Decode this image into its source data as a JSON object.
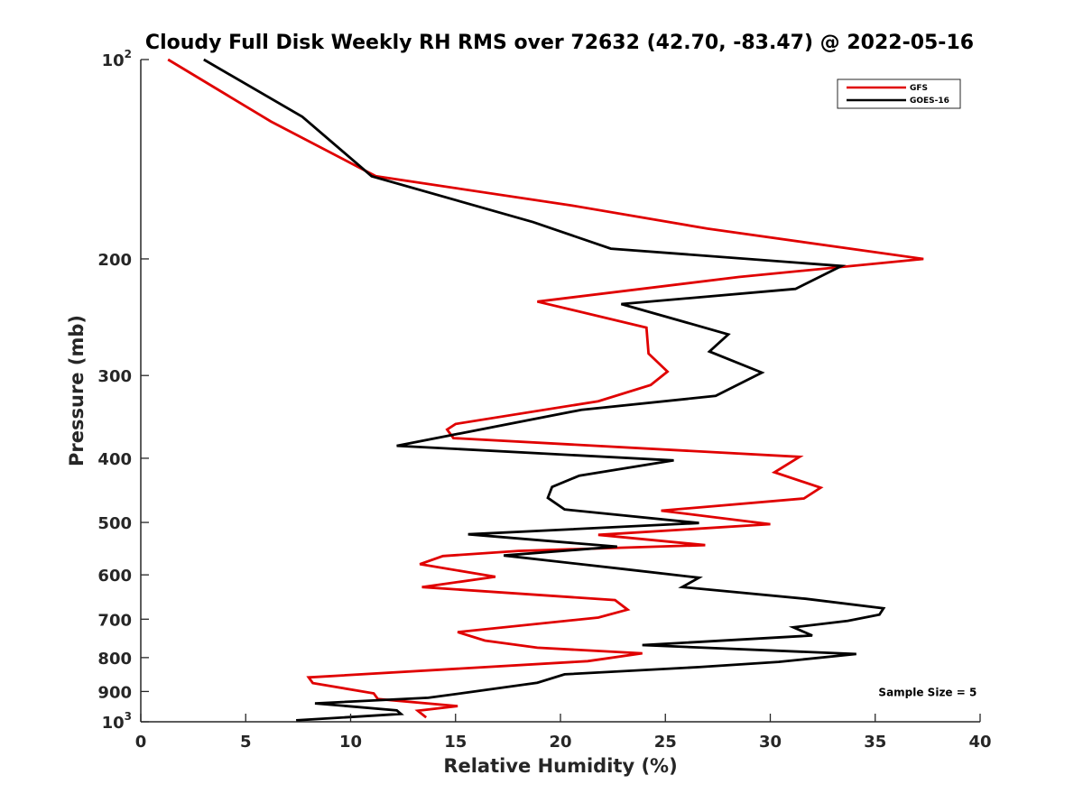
{
  "chart_data": {
    "type": "line",
    "title": "Cloudy Full Disk Weekly RH RMS over 72632 (42.70, -83.47) @ 2022-05-16",
    "xlabel": "Relative Humidity (%)",
    "ylabel": "Pressure (mb)",
    "xlim": [
      0,
      40
    ],
    "ylim": [
      100,
      1000
    ],
    "y_scale": "log",
    "y_reversed": true,
    "x_ticks": [
      0,
      5,
      10,
      15,
      20,
      25,
      30,
      35,
      40
    ],
    "x_tick_labels": [
      "0",
      "5",
      "10",
      "15",
      "20",
      "25",
      "30",
      "35",
      "40"
    ],
    "y_ticks": [
      {
        "value": 100,
        "base": "10",
        "exp": "2"
      },
      {
        "value": 200,
        "label": "200"
      },
      {
        "value": 300,
        "label": "300"
      },
      {
        "value": 400,
        "label": "400"
      },
      {
        "value": 500,
        "label": "500"
      },
      {
        "value": 600,
        "label": "600"
      },
      {
        "value": 700,
        "label": "700"
      },
      {
        "value": 800,
        "label": "800"
      },
      {
        "value": 900,
        "label": "900"
      },
      {
        "value": 1000,
        "base": "10",
        "exp": "3"
      }
    ],
    "grid": false,
    "legend_position": "top-right",
    "series": [
      {
        "name": "GFS",
        "color": "#e00000",
        "points": [
          [
            1.3,
            100
          ],
          [
            6.2,
            124
          ],
          [
            11.2,
            150
          ],
          [
            20.5,
            166
          ],
          [
            27.0,
            180
          ],
          [
            37.3,
            200
          ],
          [
            28.5,
            213
          ],
          [
            18.9,
            232
          ],
          [
            24.1,
            254
          ],
          [
            24.2,
            278
          ],
          [
            25.1,
            296
          ],
          [
            24.3,
            310
          ],
          [
            21.8,
            328
          ],
          [
            15.0,
            355
          ],
          [
            14.6,
            362
          ],
          [
            14.9,
            373
          ],
          [
            31.4,
            398
          ],
          [
            30.2,
            420
          ],
          [
            32.4,
            443
          ],
          [
            31.6,
            460
          ],
          [
            24.8,
            480
          ],
          [
            30.0,
            503
          ],
          [
            21.8,
            522
          ],
          [
            26.9,
            541
          ],
          [
            18.0,
            552
          ],
          [
            14.4,
            562
          ],
          [
            13.3,
            578
          ],
          [
            16.9,
            604
          ],
          [
            13.4,
            626
          ],
          [
            22.6,
            655
          ],
          [
            23.2,
            677
          ],
          [
            21.8,
            696
          ],
          [
            15.1,
            732
          ],
          [
            16.4,
            754
          ],
          [
            18.9,
            773
          ],
          [
            23.9,
            788
          ],
          [
            21.3,
            810
          ],
          [
            8.0,
            857
          ],
          [
            8.2,
            874
          ],
          [
            11.1,
            906
          ],
          [
            11.3,
            924
          ],
          [
            15.1,
            947
          ],
          [
            13.2,
            962
          ],
          [
            13.6,
            985
          ]
        ]
      },
      {
        "name": "GOES-16",
        "color": "#000000",
        "points": [
          [
            3.0,
            100
          ],
          [
            7.7,
            122
          ],
          [
            11.0,
            150
          ],
          [
            18.7,
            176
          ],
          [
            22.4,
            193
          ],
          [
            33.4,
            205
          ],
          [
            31.2,
            222
          ],
          [
            22.9,
            234
          ],
          [
            28.0,
            260
          ],
          [
            27.1,
            276
          ],
          [
            29.6,
            297
          ],
          [
            27.4,
            322
          ],
          [
            21.0,
            338
          ],
          [
            12.2,
            383
          ],
          [
            25.4,
            403
          ],
          [
            20.9,
            425
          ],
          [
            19.6,
            442
          ],
          [
            19.4,
            459
          ],
          [
            20.2,
            478
          ],
          [
            26.6,
            501
          ],
          [
            15.6,
            521
          ],
          [
            22.7,
            544
          ],
          [
            17.3,
            561
          ],
          [
            23.0,
            588
          ],
          [
            26.6,
            606
          ],
          [
            25.8,
            626
          ],
          [
            31.7,
            652
          ],
          [
            35.4,
            674
          ],
          [
            35.2,
            689
          ],
          [
            33.7,
            704
          ],
          [
            31.1,
            720
          ],
          [
            32.0,
            741
          ],
          [
            23.9,
            766
          ],
          [
            34.1,
            790
          ],
          [
            30.4,
            812
          ],
          [
            26.6,
            827
          ],
          [
            20.2,
            848
          ],
          [
            18.9,
            873
          ],
          [
            15.8,
            901
          ],
          [
            13.7,
            920
          ],
          [
            8.3,
            938
          ],
          [
            12.2,
            961
          ],
          [
            12.4,
            973
          ],
          [
            7.4,
            995
          ]
        ]
      }
    ],
    "annotations": [
      {
        "text": "Sample Size = 5",
        "x": 37.5,
        "y": 900
      }
    ]
  }
}
